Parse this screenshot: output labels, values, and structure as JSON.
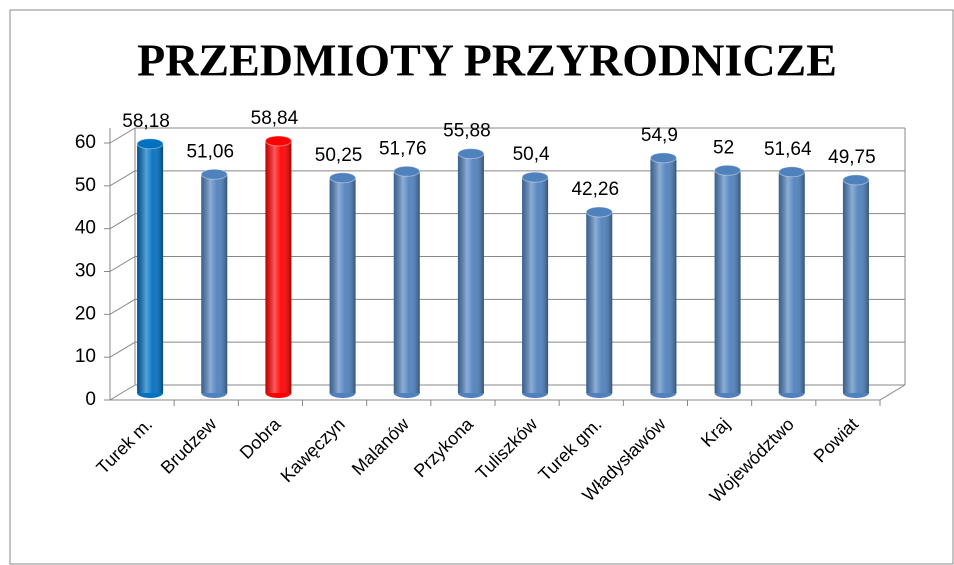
{
  "chart_data": {
    "type": "bar",
    "title": "PRZEDMIOTY PRZYRODNICZE",
    "categories": [
      "Turek m.",
      "Brudzew",
      "Dobra",
      "Kawęczyn",
      "Malanów",
      "Przykona",
      "Tuliszków",
      "Turek gm.",
      "Władysławów",
      "Kraj",
      "Województwo",
      "Powiat"
    ],
    "values": [
      58.18,
      51.06,
      58.84,
      50.25,
      51.76,
      55.88,
      50.4,
      42.26,
      54.9,
      52,
      51.64,
      49.75
    ],
    "value_labels": [
      "58,18",
      "51,06",
      "58,84",
      "50,25",
      "51,76",
      "55,88",
      "50,4",
      "42,26",
      "54,9",
      "52",
      "51,64",
      "49,75"
    ],
    "colors": [
      "#0070c0",
      "#4f81bd",
      "#ff0000",
      "#4f81bd",
      "#4f81bd",
      "#4f81bd",
      "#4f81bd",
      "#4f81bd",
      "#4f81bd",
      "#4f81bd",
      "#4f81bd",
      "#4f81bd"
    ],
    "ylim": [
      0,
      60
    ],
    "yticks": [
      0,
      10,
      20,
      30,
      40,
      50,
      60
    ],
    "grid": true
  }
}
